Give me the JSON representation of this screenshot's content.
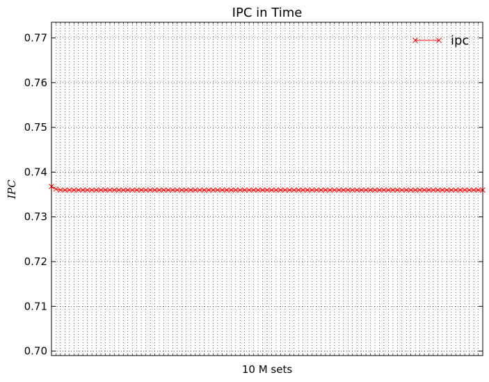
{
  "chart_data": {
    "type": "line",
    "title": "IPC in Time",
    "xlabel": "10 M sets",
    "ylabel": "IPC",
    "ylim": [
      0.699,
      0.7735
    ],
    "yticks": [
      0.7,
      0.71,
      0.72,
      0.73,
      0.74,
      0.75,
      0.76,
      0.77
    ],
    "ytick_labels": [
      "0.70",
      "0.71",
      "0.72",
      "0.73",
      "0.74",
      "0.75",
      "0.76",
      "0.77"
    ],
    "x_ticks_labeled": false,
    "grid": true,
    "legend_position": "top-right",
    "series": [
      {
        "name": "ipc",
        "color": "#ff0000",
        "marker": "x",
        "x": [
          0,
          1,
          2,
          3,
          4,
          5,
          6,
          7,
          8,
          9,
          10,
          11,
          12,
          13,
          14,
          15,
          16,
          17,
          18,
          19,
          20,
          21,
          22,
          23,
          24,
          25,
          26,
          27,
          28,
          29,
          30,
          31,
          32,
          33,
          34,
          35,
          36,
          37,
          38,
          39,
          40,
          41,
          42,
          43,
          44,
          45,
          46,
          47,
          48,
          49,
          50,
          51,
          52,
          53,
          54,
          55,
          56,
          57,
          58,
          59,
          60,
          61,
          62,
          63,
          64,
          65,
          66,
          67,
          68,
          69,
          70,
          71,
          72,
          73,
          74,
          75,
          76,
          77,
          78,
          79,
          80,
          81,
          82,
          83,
          84,
          85,
          86,
          87,
          88,
          89,
          90,
          91,
          92,
          93,
          94,
          95,
          96
        ],
        "values": [
          0.7368,
          0.7362,
          0.736,
          0.736,
          0.736,
          0.736,
          0.736,
          0.736,
          0.736,
          0.736,
          0.736,
          0.736,
          0.736,
          0.736,
          0.736,
          0.736,
          0.736,
          0.736,
          0.736,
          0.736,
          0.736,
          0.736,
          0.736,
          0.736,
          0.736,
          0.736,
          0.736,
          0.736,
          0.736,
          0.736,
          0.736,
          0.736,
          0.736,
          0.736,
          0.736,
          0.736,
          0.736,
          0.736,
          0.736,
          0.736,
          0.736,
          0.736,
          0.736,
          0.736,
          0.736,
          0.736,
          0.736,
          0.736,
          0.736,
          0.736,
          0.736,
          0.736,
          0.736,
          0.736,
          0.736,
          0.736,
          0.736,
          0.736,
          0.736,
          0.736,
          0.736,
          0.736,
          0.736,
          0.736,
          0.736,
          0.736,
          0.736,
          0.736,
          0.736,
          0.736,
          0.736,
          0.736,
          0.736,
          0.736,
          0.736,
          0.736,
          0.736,
          0.736,
          0.736,
          0.736,
          0.736,
          0.736,
          0.736,
          0.736,
          0.736,
          0.736,
          0.736,
          0.736,
          0.736,
          0.736,
          0.736,
          0.736,
          0.736,
          0.736,
          0.736,
          0.736,
          0.736
        ]
      }
    ]
  }
}
